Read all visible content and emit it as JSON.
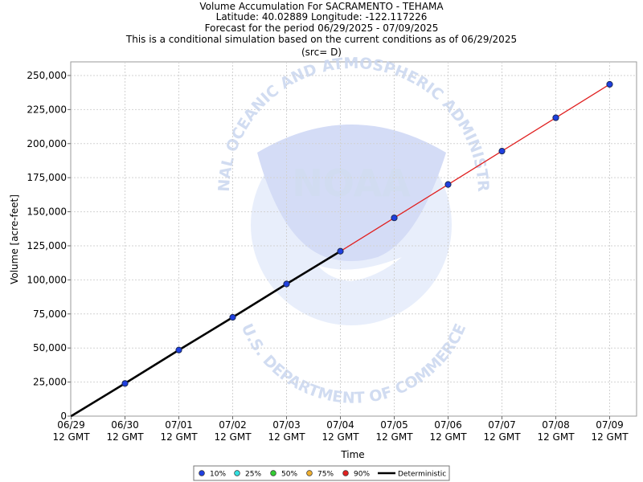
{
  "chart_data": {
    "type": "line",
    "title_lines": [
      "Volume Accumulation For SACRAMENTO - TEHAMA",
      "Latitude: 40.02889 Longitude: -122.117226",
      "Forecast for the period 06/29/2025 - 07/09/2025",
      "This is a conditional simulation based on the current conditions as of 06/29/2025",
      "(src= D)"
    ],
    "xlabel": "Time",
    "ylabel": "Volume [acre-feet]",
    "ylim": [
      0,
      260000
    ],
    "yticks": [
      {
        "value": 0,
        "label": "0"
      },
      {
        "value": 25000,
        "label": "25,000"
      },
      {
        "value": 50000,
        "label": "50,000"
      },
      {
        "value": 75000,
        "label": "75,000"
      },
      {
        "value": 100000,
        "label": "100,000"
      },
      {
        "value": 125000,
        "label": "125,000"
      },
      {
        "value": 150000,
        "label": "150,000"
      },
      {
        "value": 175000,
        "label": "175,000"
      },
      {
        "value": 200000,
        "label": "200,000"
      },
      {
        "value": 225000,
        "label": "225,000"
      },
      {
        "value": 250000,
        "label": "250,000"
      }
    ],
    "xticks": [
      {
        "date": "06/29",
        "line2": "12 GMT"
      },
      {
        "date": "06/30",
        "line2": "12 GMT"
      },
      {
        "date": "07/01",
        "line2": "12 GMT"
      },
      {
        "date": "07/02",
        "line2": "12 GMT"
      },
      {
        "date": "07/03",
        "line2": "12 GMT"
      },
      {
        "date": "07/04",
        "line2": "12 GMT"
      },
      {
        "date": "07/05",
        "line2": "12 GMT"
      },
      {
        "date": "07/06",
        "line2": "12 GMT"
      },
      {
        "date": "07/07",
        "line2": "12 GMT"
      },
      {
        "date": "07/08",
        "line2": "12 GMT"
      },
      {
        "date": "07/09",
        "line2": "12 GMT"
      }
    ],
    "grid": true,
    "legend_position": "bottom-center",
    "legend": [
      {
        "label": "10%",
        "color": "#1f3fe0",
        "kind": "marker"
      },
      {
        "label": "25%",
        "color": "#33e0e0",
        "kind": "marker"
      },
      {
        "label": "50%",
        "color": "#33cc33",
        "kind": "marker"
      },
      {
        "label": "75%",
        "color": "#f0b030",
        "kind": "marker"
      },
      {
        "label": "90%",
        "color": "#e02020",
        "kind": "marker"
      },
      {
        "label": "Deterministic",
        "color": "#000000",
        "kind": "line"
      }
    ],
    "series": [
      {
        "name": "Deterministic",
        "color": "#000000",
        "x": [
          "06/29",
          "06/30",
          "07/01",
          "07/02",
          "07/03",
          "07/04"
        ],
        "values": [
          0,
          24000,
          48500,
          72500,
          97000,
          121000
        ]
      },
      {
        "name": "90%",
        "color": "#e02020",
        "x": [
          "07/04",
          "07/05",
          "07/06",
          "07/07",
          "07/08",
          "07/09"
        ],
        "values": [
          121000,
          145500,
          170000,
          194500,
          219000,
          243500
        ]
      },
      {
        "name": "10%",
        "color": "#1f3fe0",
        "x": [
          "06/30",
          "07/01",
          "07/02",
          "07/03",
          "07/04",
          "07/05",
          "07/06",
          "07/07",
          "07/08",
          "07/09"
        ],
        "values": [
          24000,
          48500,
          72500,
          97000,
          121000,
          145500,
          170000,
          194500,
          219000,
          243500
        ]
      }
    ],
    "watermark": {
      "logo_text": "NOAA",
      "arc_top": "NATIONAL OCEANIC AND ATMOSPHERIC ADMINISTRATION",
      "arc_bottom": "U.S. DEPARTMENT OF COMMERCE"
    }
  }
}
